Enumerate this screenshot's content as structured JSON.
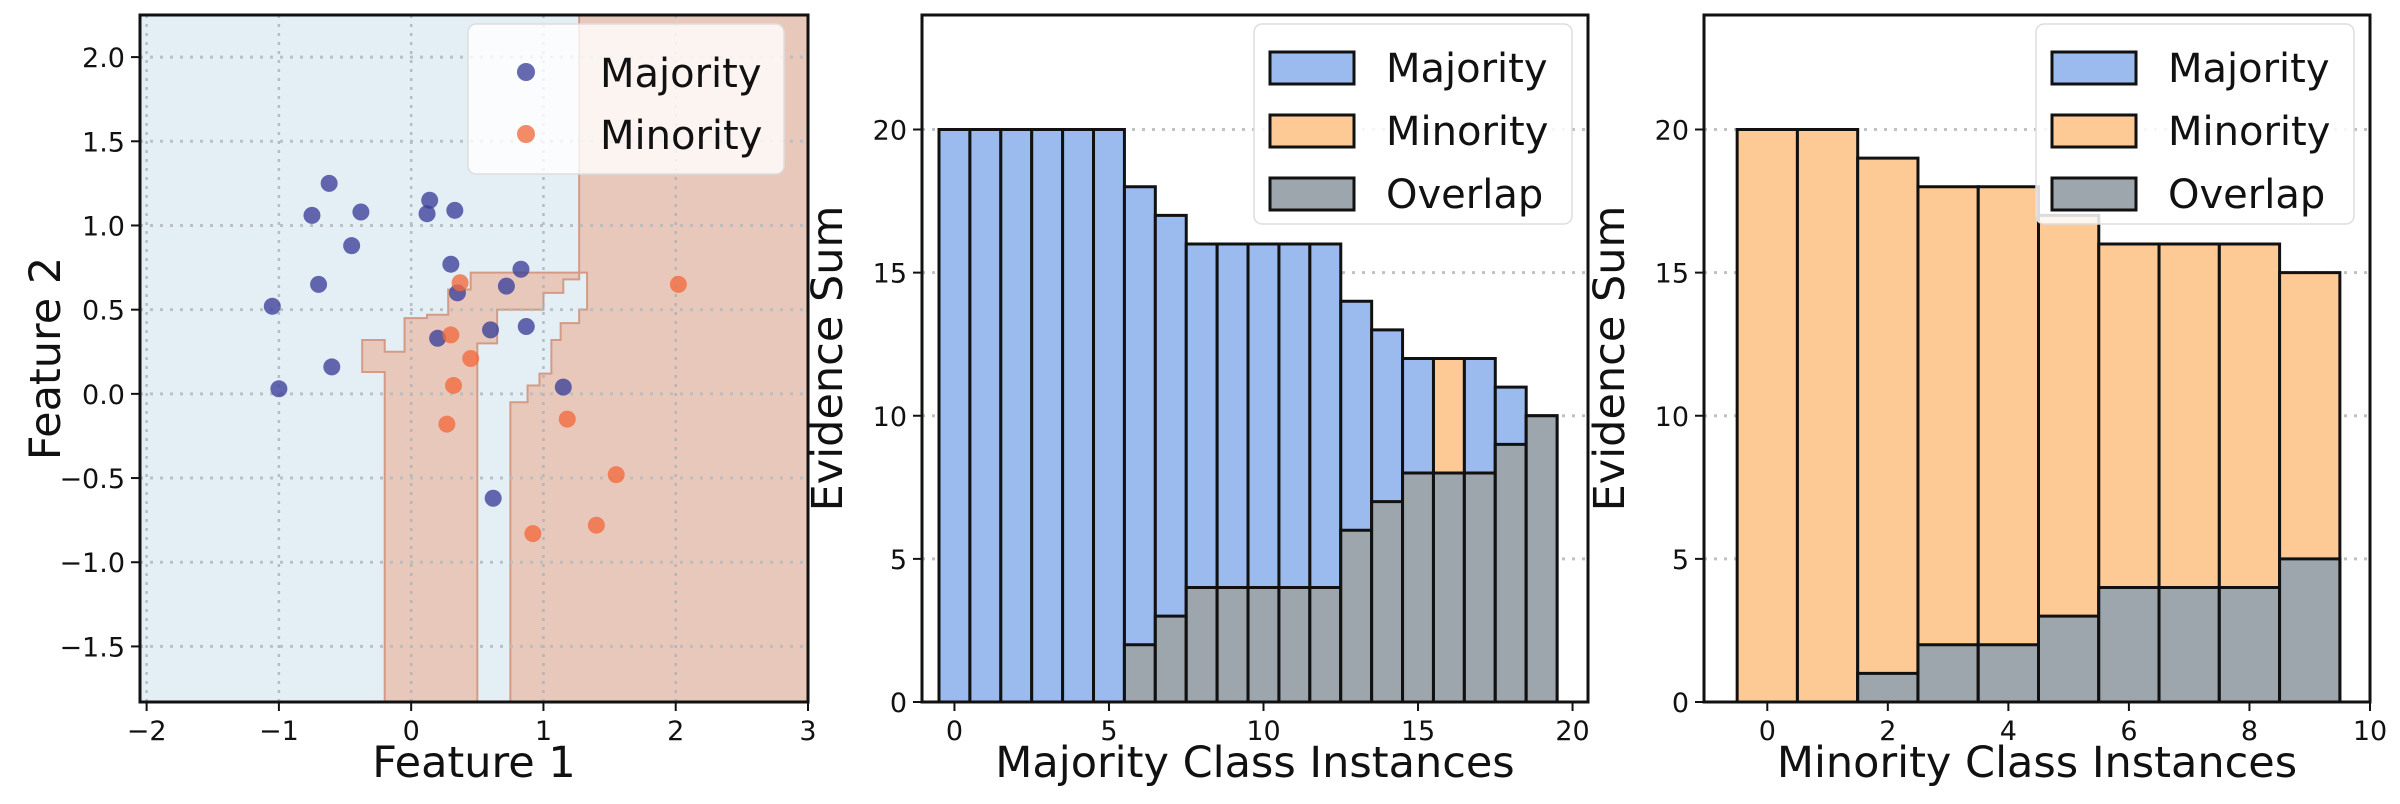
{
  "chart_data": [
    {
      "type": "scatter",
      "title": "",
      "xlabel": "Feature 1",
      "ylabel": "Feature 2",
      "xlim": [
        -2.05,
        3.0
      ],
      "ylim": [
        -1.83,
        2.25
      ],
      "xticks": [
        -2,
        -1,
        0,
        1,
        2,
        3
      ],
      "yticks": [
        -1.5,
        -1.0,
        -0.5,
        0.0,
        0.5,
        1.0,
        1.5,
        2.0
      ],
      "xtick_labels": [
        "−2",
        "−1",
        "0",
        "1",
        "2",
        "3"
      ],
      "ytick_labels": [
        "−1.5",
        "−1.0",
        "−0.5",
        "0.0",
        "0.5",
        "1.0",
        "1.5",
        "2.0"
      ],
      "grid": true,
      "legend_position": "top-right",
      "colors": {
        "majority": "#3b3f9a",
        "minority": "#f26a3e",
        "majority_region": "#e3eef5",
        "minority_region": "#e8c8bb",
        "boundary": "#d49a86"
      },
      "decision_regions": {
        "background_class": "Majority",
        "minority_region_polygon": [
          [
            1.27,
            2.25
          ],
          [
            3.0,
            2.25
          ],
          [
            3.0,
            -1.83
          ],
          [
            0.75,
            -1.83
          ],
          [
            0.75,
            -0.05
          ],
          [
            0.88,
            -0.05
          ],
          [
            0.88,
            0.05
          ],
          [
            0.97,
            0.05
          ],
          [
            0.97,
            0.12
          ],
          [
            1.06,
            0.12
          ],
          [
            1.06,
            0.32
          ],
          [
            1.13,
            0.32
          ],
          [
            1.13,
            0.42
          ],
          [
            1.27,
            0.42
          ],
          [
            1.27,
            0.5
          ],
          [
            1.33,
            0.5
          ],
          [
            1.33,
            0.72
          ],
          [
            1.27,
            0.72
          ],
          [
            1.27,
            0.68
          ],
          [
            1.15,
            0.68
          ],
          [
            1.15,
            0.6
          ],
          [
            1.0,
            0.6
          ],
          [
            1.0,
            0.5
          ],
          [
            0.65,
            0.5
          ],
          [
            0.65,
            0.3
          ],
          [
            0.5,
            0.3
          ],
          [
            0.5,
            -1.83
          ],
          [
            -0.2,
            -1.83
          ],
          [
            -0.2,
            0.13
          ],
          [
            -0.37,
            0.13
          ],
          [
            -0.37,
            0.32
          ],
          [
            -0.2,
            0.32
          ],
          [
            -0.2,
            0.25
          ],
          [
            -0.05,
            0.25
          ],
          [
            -0.05,
            0.45
          ],
          [
            0.12,
            0.45
          ],
          [
            0.12,
            0.47
          ],
          [
            0.28,
            0.47
          ],
          [
            0.28,
            0.62
          ],
          [
            0.45,
            0.62
          ],
          [
            0.45,
            0.72
          ],
          [
            1.27,
            0.72
          ]
        ]
      },
      "series": [
        {
          "name": "Majority",
          "points": [
            [
              -1.05,
              0.52
            ],
            [
              -1.0,
              0.03
            ],
            [
              -0.75,
              1.06
            ],
            [
              -0.7,
              0.65
            ],
            [
              -0.62,
              1.25
            ],
            [
              -0.6,
              0.16
            ],
            [
              -0.45,
              0.88
            ],
            [
              -0.38,
              1.08
            ],
            [
              0.12,
              1.07
            ],
            [
              0.14,
              1.15
            ],
            [
              0.2,
              0.33
            ],
            [
              0.3,
              0.77
            ],
            [
              0.33,
              1.09
            ],
            [
              0.35,
              0.6
            ],
            [
              0.6,
              0.38
            ],
            [
              0.62,
              -0.62
            ],
            [
              0.72,
              0.64
            ],
            [
              0.83,
              0.74
            ],
            [
              0.87,
              0.4
            ],
            [
              1.15,
              0.04
            ]
          ]
        },
        {
          "name": "Minority",
          "points": [
            [
              0.27,
              -0.18
            ],
            [
              0.3,
              0.35
            ],
            [
              0.32,
              0.05
            ],
            [
              0.37,
              0.66
            ],
            [
              0.45,
              0.21
            ],
            [
              0.92,
              -0.83
            ],
            [
              1.18,
              -0.15
            ],
            [
              1.4,
              -0.78
            ],
            [
              1.55,
              -0.48
            ],
            [
              2.02,
              0.65
            ]
          ]
        }
      ]
    },
    {
      "type": "bar",
      "title": "",
      "xlabel": "Majority Class Instances",
      "ylabel": "Evidence Sum",
      "xlim": [
        -1.05,
        20.5
      ],
      "ylim": [
        0,
        24
      ],
      "xticks": [
        0,
        5,
        10,
        15,
        20
      ],
      "yticks": [
        0,
        5,
        10,
        15,
        20
      ],
      "grid": "y",
      "legend_position": "top-right",
      "colors": {
        "Majority": "#9bbbef",
        "Minority": "#fdc994",
        "Overlap": "#9ea6ad"
      },
      "legend": [
        "Majority",
        "Minority",
        "Overlap"
      ],
      "x": [
        0,
        1,
        2,
        3,
        4,
        5,
        6,
        7,
        8,
        9,
        10,
        11,
        12,
        13,
        14,
        15,
        16,
        17,
        18,
        19
      ],
      "series": [
        {
          "name": "Majority",
          "values": [
            20,
            20,
            20,
            20,
            20,
            20,
            18,
            17,
            16,
            16,
            16,
            16,
            16,
            14,
            13,
            12,
            8,
            12,
            11,
            10
          ]
        },
        {
          "name": "Minority",
          "values": [
            0,
            0,
            0,
            0,
            0,
            0,
            0,
            0,
            0,
            0,
            0,
            0,
            0,
            0,
            0,
            0,
            12,
            0,
            0,
            0
          ]
        },
        {
          "name": "Overlap",
          "values": [
            0,
            0,
            0,
            0,
            0,
            0,
            2,
            3,
            4,
            4,
            4,
            4,
            4,
            6,
            7,
            8,
            8,
            8,
            9,
            10
          ]
        }
      ]
    },
    {
      "type": "bar",
      "title": "",
      "xlabel": "Minority Class Instances",
      "ylabel": "Evidence Sum",
      "xlim": [
        -1.05,
        10.0
      ],
      "ylim": [
        0,
        24
      ],
      "xticks": [
        0,
        2,
        4,
        6,
        8,
        10
      ],
      "yticks": [
        0,
        5,
        10,
        15,
        20
      ],
      "grid": "y",
      "legend_position": "top-right",
      "colors": {
        "Majority": "#9bbbef",
        "Minority": "#fdc994",
        "Overlap": "#9ea6ad"
      },
      "legend": [
        "Majority",
        "Minority",
        "Overlap"
      ],
      "x": [
        0,
        1,
        2,
        3,
        4,
        5,
        6,
        7,
        8,
        9
      ],
      "series": [
        {
          "name": "Majority",
          "values": [
            0,
            0,
            0,
            0,
            0,
            0,
            0,
            0,
            0,
            0
          ]
        },
        {
          "name": "Minority",
          "values": [
            20,
            20,
            19,
            18,
            18,
            17,
            16,
            16,
            16,
            15
          ]
        },
        {
          "name": "Overlap",
          "values": [
            0,
            0,
            1,
            2,
            2,
            3,
            4,
            4,
            4,
            5
          ]
        }
      ]
    }
  ]
}
